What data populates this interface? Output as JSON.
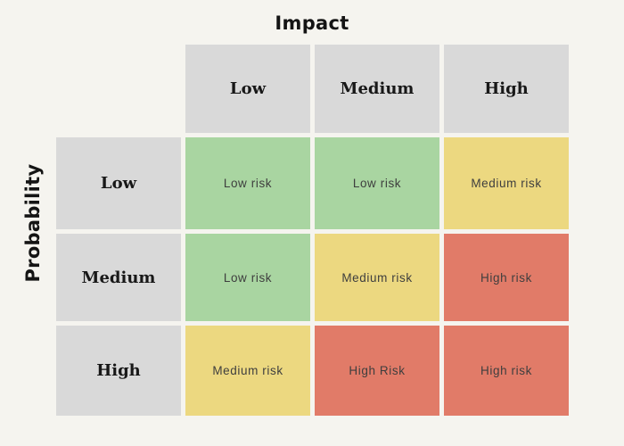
{
  "axes": {
    "x_title": "Impact",
    "y_title": "Probability"
  },
  "matrix": {
    "column_headers": [
      "Low",
      "Medium",
      "High"
    ],
    "row_headers": [
      "Low",
      "Medium",
      "High"
    ],
    "cells": [
      [
        {
          "label": "Low risk",
          "level": "low"
        },
        {
          "label": "Low risk",
          "level": "low"
        },
        {
          "label": "Medium risk",
          "level": "medium"
        }
      ],
      [
        {
          "label": "Low risk",
          "level": "low"
        },
        {
          "label": "Medium risk",
          "level": "medium"
        },
        {
          "label": "High risk",
          "level": "high"
        }
      ],
      [
        {
          "label": "Medium risk",
          "level": "medium"
        },
        {
          "label": "High Risk",
          "level": "high"
        },
        {
          "label": "High risk",
          "level": "high"
        }
      ]
    ]
  },
  "colors": {
    "background": "#f5f4ef",
    "header": "#d9d9d9",
    "low": "#a9d5a1",
    "medium": "#ecd880",
    "high": "#e17b68",
    "cell_text": "#3e3e3e",
    "header_text": "#181818",
    "title_text": "#141414"
  }
}
